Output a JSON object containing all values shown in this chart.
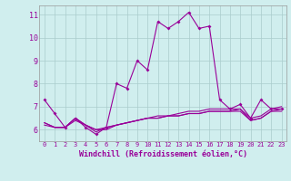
{
  "xlabel": "Windchill (Refroidissement éolien,°C)",
  "x": [
    0,
    1,
    2,
    3,
    4,
    5,
    6,
    7,
    8,
    9,
    10,
    11,
    12,
    13,
    14,
    15,
    16,
    17,
    18,
    19,
    20,
    21,
    22,
    23
  ],
  "line1": [
    7.3,
    6.7,
    6.1,
    6.5,
    6.1,
    5.8,
    6.1,
    8.0,
    7.8,
    9.0,
    8.6,
    10.7,
    10.4,
    10.7,
    11.1,
    10.4,
    10.5,
    7.3,
    6.9,
    7.1,
    6.5,
    7.3,
    6.9,
    6.9
  ],
  "line2": [
    6.3,
    6.1,
    6.1,
    6.5,
    6.2,
    6.0,
    6.1,
    6.2,
    6.3,
    6.4,
    6.5,
    6.5,
    6.6,
    6.6,
    6.7,
    6.7,
    6.8,
    6.8,
    6.8,
    6.9,
    6.4,
    6.5,
    6.8,
    6.9
  ],
  "line3": [
    6.2,
    6.1,
    6.1,
    6.4,
    6.2,
    6.0,
    6.0,
    6.2,
    6.3,
    6.4,
    6.5,
    6.5,
    6.6,
    6.6,
    6.7,
    6.7,
    6.8,
    6.8,
    6.8,
    6.8,
    6.4,
    6.5,
    6.8,
    6.8
  ],
  "line4": [
    6.3,
    6.1,
    6.1,
    6.5,
    6.2,
    5.9,
    6.1,
    6.2,
    6.3,
    6.4,
    6.5,
    6.6,
    6.6,
    6.7,
    6.8,
    6.8,
    6.9,
    6.9,
    6.9,
    6.9,
    6.5,
    6.6,
    6.9,
    7.0
  ],
  "line_color": "#990099",
  "bg_color": "#d0eeee",
  "grid_color": "#aacccc",
  "ylim": [
    5.5,
    11.4
  ],
  "xlim": [
    -0.5,
    23.5
  ],
  "yticks": [
    6,
    7,
    8,
    9,
    10,
    11
  ],
  "xticks": [
    0,
    1,
    2,
    3,
    4,
    5,
    6,
    7,
    8,
    9,
    10,
    11,
    12,
    13,
    14,
    15,
    16,
    17,
    18,
    19,
    20,
    21,
    22,
    23
  ]
}
